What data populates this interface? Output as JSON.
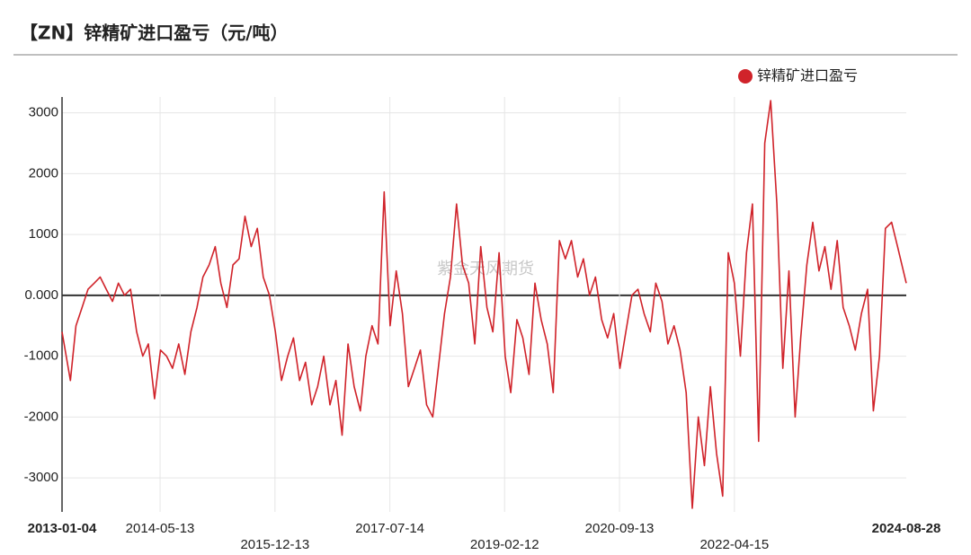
{
  "chart_data": {
    "type": "line",
    "title": "【ZN】锌精矿进口盈亏（元/吨）",
    "watermark": "紫金天风期货",
    "legend": "top-right",
    "grid": true,
    "xlim": [
      "2013-01-04",
      "2024-08-28"
    ],
    "xticks": [
      "2013-01-04",
      "2014-05-13",
      "2015-12-13",
      "2017-07-14",
      "2019-02-12",
      "2020-09-13",
      "2022-04-15",
      "2024-08-28"
    ],
    "ylim": [
      -3560,
      3260
    ],
    "yticks": [
      -3000,
      -2000,
      -1000,
      {
        "value": 0,
        "label": "0.000"
      },
      1000,
      2000,
      3000
    ],
    "x": [
      "2013-01-04",
      "2013-02-15",
      "2013-03-15",
      "2013-04-15",
      "2013-05-15",
      "2013-06-15",
      "2013-07-15",
      "2013-08-15",
      "2013-09-15",
      "2013-10-15",
      "2013-11-15",
      "2013-12-15",
      "2014-01-15",
      "2014-02-15",
      "2014-03-15",
      "2014-04-15",
      "2014-05-15",
      "2014-06-15",
      "2014-07-15",
      "2014-08-15",
      "2014-09-15",
      "2014-10-15",
      "2014-11-15",
      "2014-12-15",
      "2015-01-15",
      "2015-02-15",
      "2015-03-15",
      "2015-04-15",
      "2015-05-15",
      "2015-06-15",
      "2015-07-15",
      "2015-08-15",
      "2015-09-15",
      "2015-10-15",
      "2015-11-15",
      "2015-12-15",
      "2016-01-15",
      "2016-02-15",
      "2016-03-15",
      "2016-04-15",
      "2016-05-15",
      "2016-06-15",
      "2016-07-15",
      "2016-08-15",
      "2016-09-15",
      "2016-10-15",
      "2016-11-15",
      "2016-12-15",
      "2017-01-15",
      "2017-02-15",
      "2017-03-15",
      "2017-04-15",
      "2017-05-15",
      "2017-06-15",
      "2017-07-15",
      "2017-08-15",
      "2017-09-15",
      "2017-10-15",
      "2017-11-15",
      "2017-12-15",
      "2018-01-15",
      "2018-02-15",
      "2018-03-15",
      "2018-04-15",
      "2018-05-15",
      "2018-06-15",
      "2018-07-15",
      "2018-08-15",
      "2018-09-15",
      "2018-10-15",
      "2018-11-15",
      "2018-12-15",
      "2019-01-15",
      "2019-02-15",
      "2019-03-15",
      "2019-04-15",
      "2019-05-15",
      "2019-06-15",
      "2019-07-15",
      "2019-08-15",
      "2019-09-15",
      "2019-10-15",
      "2019-11-15",
      "2019-12-15",
      "2020-01-15",
      "2020-02-15",
      "2020-03-15",
      "2020-04-15",
      "2020-05-15",
      "2020-06-15",
      "2020-07-15",
      "2020-08-15",
      "2020-09-15",
      "2020-10-15",
      "2020-11-15",
      "2020-12-15",
      "2021-01-15",
      "2021-02-15",
      "2021-03-15",
      "2021-04-15",
      "2021-05-15",
      "2021-06-15",
      "2021-07-15",
      "2021-08-15",
      "2021-09-15",
      "2021-10-15",
      "2021-11-15",
      "2021-12-15",
      "2022-01-15",
      "2022-02-15",
      "2022-03-15",
      "2022-04-15",
      "2022-05-15",
      "2022-06-15",
      "2022-07-15",
      "2022-08-15",
      "2022-09-15",
      "2022-10-15",
      "2022-11-15",
      "2022-12-15",
      "2023-01-15",
      "2023-02-15",
      "2023-03-15",
      "2023-04-15",
      "2023-05-15",
      "2023-06-15",
      "2023-07-15",
      "2023-08-15",
      "2023-09-15",
      "2023-10-15",
      "2023-11-15",
      "2023-12-15",
      "2024-01-15",
      "2024-02-15",
      "2024-03-15",
      "2024-04-15",
      "2024-05-15",
      "2024-06-15",
      "2024-07-15",
      "2024-08-28"
    ],
    "series": [
      {
        "name": "锌精矿进口盈亏",
        "color": "#d0232a",
        "values": [
          -600,
          -1400,
          -500,
          -200,
          100,
          200,
          300,
          100,
          -100,
          200,
          0,
          100,
          -600,
          -1000,
          -800,
          -1700,
          -900,
          -1000,
          -1200,
          -800,
          -1300,
          -600,
          -200,
          300,
          500,
          800,
          200,
          -200,
          500,
          600,
          1300,
          800,
          1100,
          300,
          0,
          -600,
          -1400,
          -1000,
          -700,
          -1400,
          -1100,
          -1800,
          -1500,
          -1000,
          -1800,
          -1400,
          -2300,
          -800,
          -1500,
          -1900,
          -1000,
          -500,
          -800,
          1700,
          -500,
          400,
          -300,
          -1500,
          -1200,
          -900,
          -1800,
          -2000,
          -1200,
          -300,
          300,
          1500,
          500,
          200,
          -800,
          800,
          -200,
          -600,
          700,
          -1000,
          -1600,
          -400,
          -700,
          -1300,
          200,
          -400,
          -800,
          -1600,
          900,
          600,
          900,
          300,
          600,
          0,
          300,
          -400,
          -700,
          -300,
          -1200,
          -600,
          0,
          100,
          -300,
          -600,
          200,
          -100,
          -800,
          -500,
          -900,
          -1600,
          -3500,
          -2000,
          -2800,
          -1500,
          -2600,
          -3300,
          700,
          200,
          -1000,
          700,
          1500,
          -2400,
          2500,
          3200,
          1500,
          -1200,
          400,
          -2000,
          -700,
          500,
          1200,
          400,
          800,
          100,
          900,
          -200,
          -500,
          -900,
          -300,
          100,
          -1900,
          -1000,
          1100,
          1200,
          800,
          200
        ]
      }
    ]
  }
}
